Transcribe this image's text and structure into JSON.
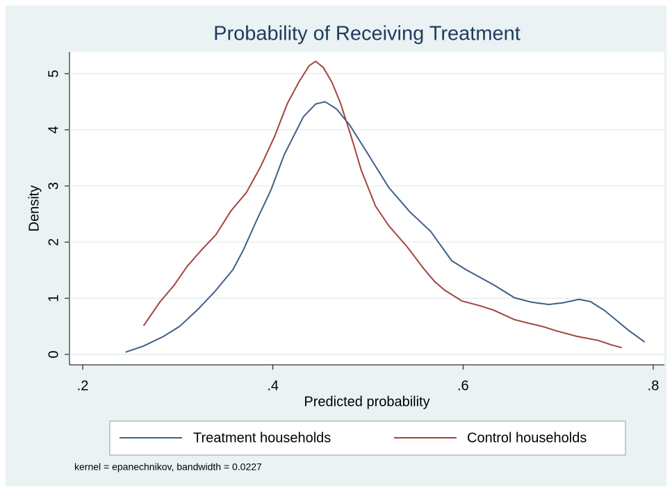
{
  "chart_data": {
    "type": "line",
    "title": "Probability of Receiving Treatment",
    "xlabel": "Predicted probability",
    "ylabel": "Density",
    "note": "kernel = epanechnikov, bandwidth = 0.0227",
    "xlim": [
      0.2,
      0.8
    ],
    "ylim": [
      0,
      5
    ],
    "xticks": [
      {
        "value": 0.2,
        "label": ".2"
      },
      {
        "value": 0.4,
        "label": ".4"
      },
      {
        "value": 0.6,
        "label": ".6"
      },
      {
        "value": 0.8,
        "label": ".8"
      }
    ],
    "yticks": [
      0,
      1,
      2,
      3,
      4,
      5
    ],
    "grid": true,
    "legend": "bottom",
    "series": [
      {
        "name": "Treatment households",
        "color": "#3e5f85",
        "x": [
          0.245,
          0.264,
          0.285,
          0.302,
          0.321,
          0.34,
          0.358,
          0.369,
          0.383,
          0.398,
          0.412,
          0.432,
          0.445,
          0.455,
          0.467,
          0.481,
          0.497,
          0.522,
          0.544,
          0.566,
          0.588,
          0.603,
          0.632,
          0.654,
          0.672,
          0.69,
          0.705,
          0.722,
          0.734,
          0.749,
          0.774,
          0.791
        ],
        "values": [
          0.04,
          0.15,
          0.32,
          0.5,
          0.8,
          1.14,
          1.51,
          1.86,
          2.39,
          2.93,
          3.56,
          4.23,
          4.46,
          4.5,
          4.37,
          4.08,
          3.65,
          2.97,
          2.54,
          2.19,
          1.67,
          1.51,
          1.24,
          1.01,
          0.93,
          0.89,
          0.92,
          0.98,
          0.94,
          0.78,
          0.43,
          0.22
        ]
      },
      {
        "name": "Control households",
        "color": "#a3423f",
        "x": [
          0.264,
          0.281,
          0.296,
          0.31,
          0.325,
          0.34,
          0.356,
          0.372,
          0.387,
          0.402,
          0.415,
          0.427,
          0.438,
          0.445,
          0.453,
          0.462,
          0.471,
          0.482,
          0.493,
          0.508,
          0.522,
          0.541,
          0.559,
          0.57,
          0.581,
          0.599,
          0.617,
          0.632,
          0.654,
          0.668,
          0.683,
          0.698,
          0.72,
          0.742,
          0.756,
          0.767
        ],
        "values": [
          0.51,
          0.93,
          1.23,
          1.57,
          1.86,
          2.13,
          2.56,
          2.88,
          3.34,
          3.89,
          4.46,
          4.84,
          5.14,
          5.22,
          5.11,
          4.85,
          4.48,
          3.9,
          3.28,
          2.64,
          2.29,
          1.92,
          1.52,
          1.3,
          1.14,
          0.95,
          0.87,
          0.79,
          0.62,
          0.56,
          0.5,
          0.42,
          0.32,
          0.25,
          0.17,
          0.12
        ]
      }
    ]
  }
}
